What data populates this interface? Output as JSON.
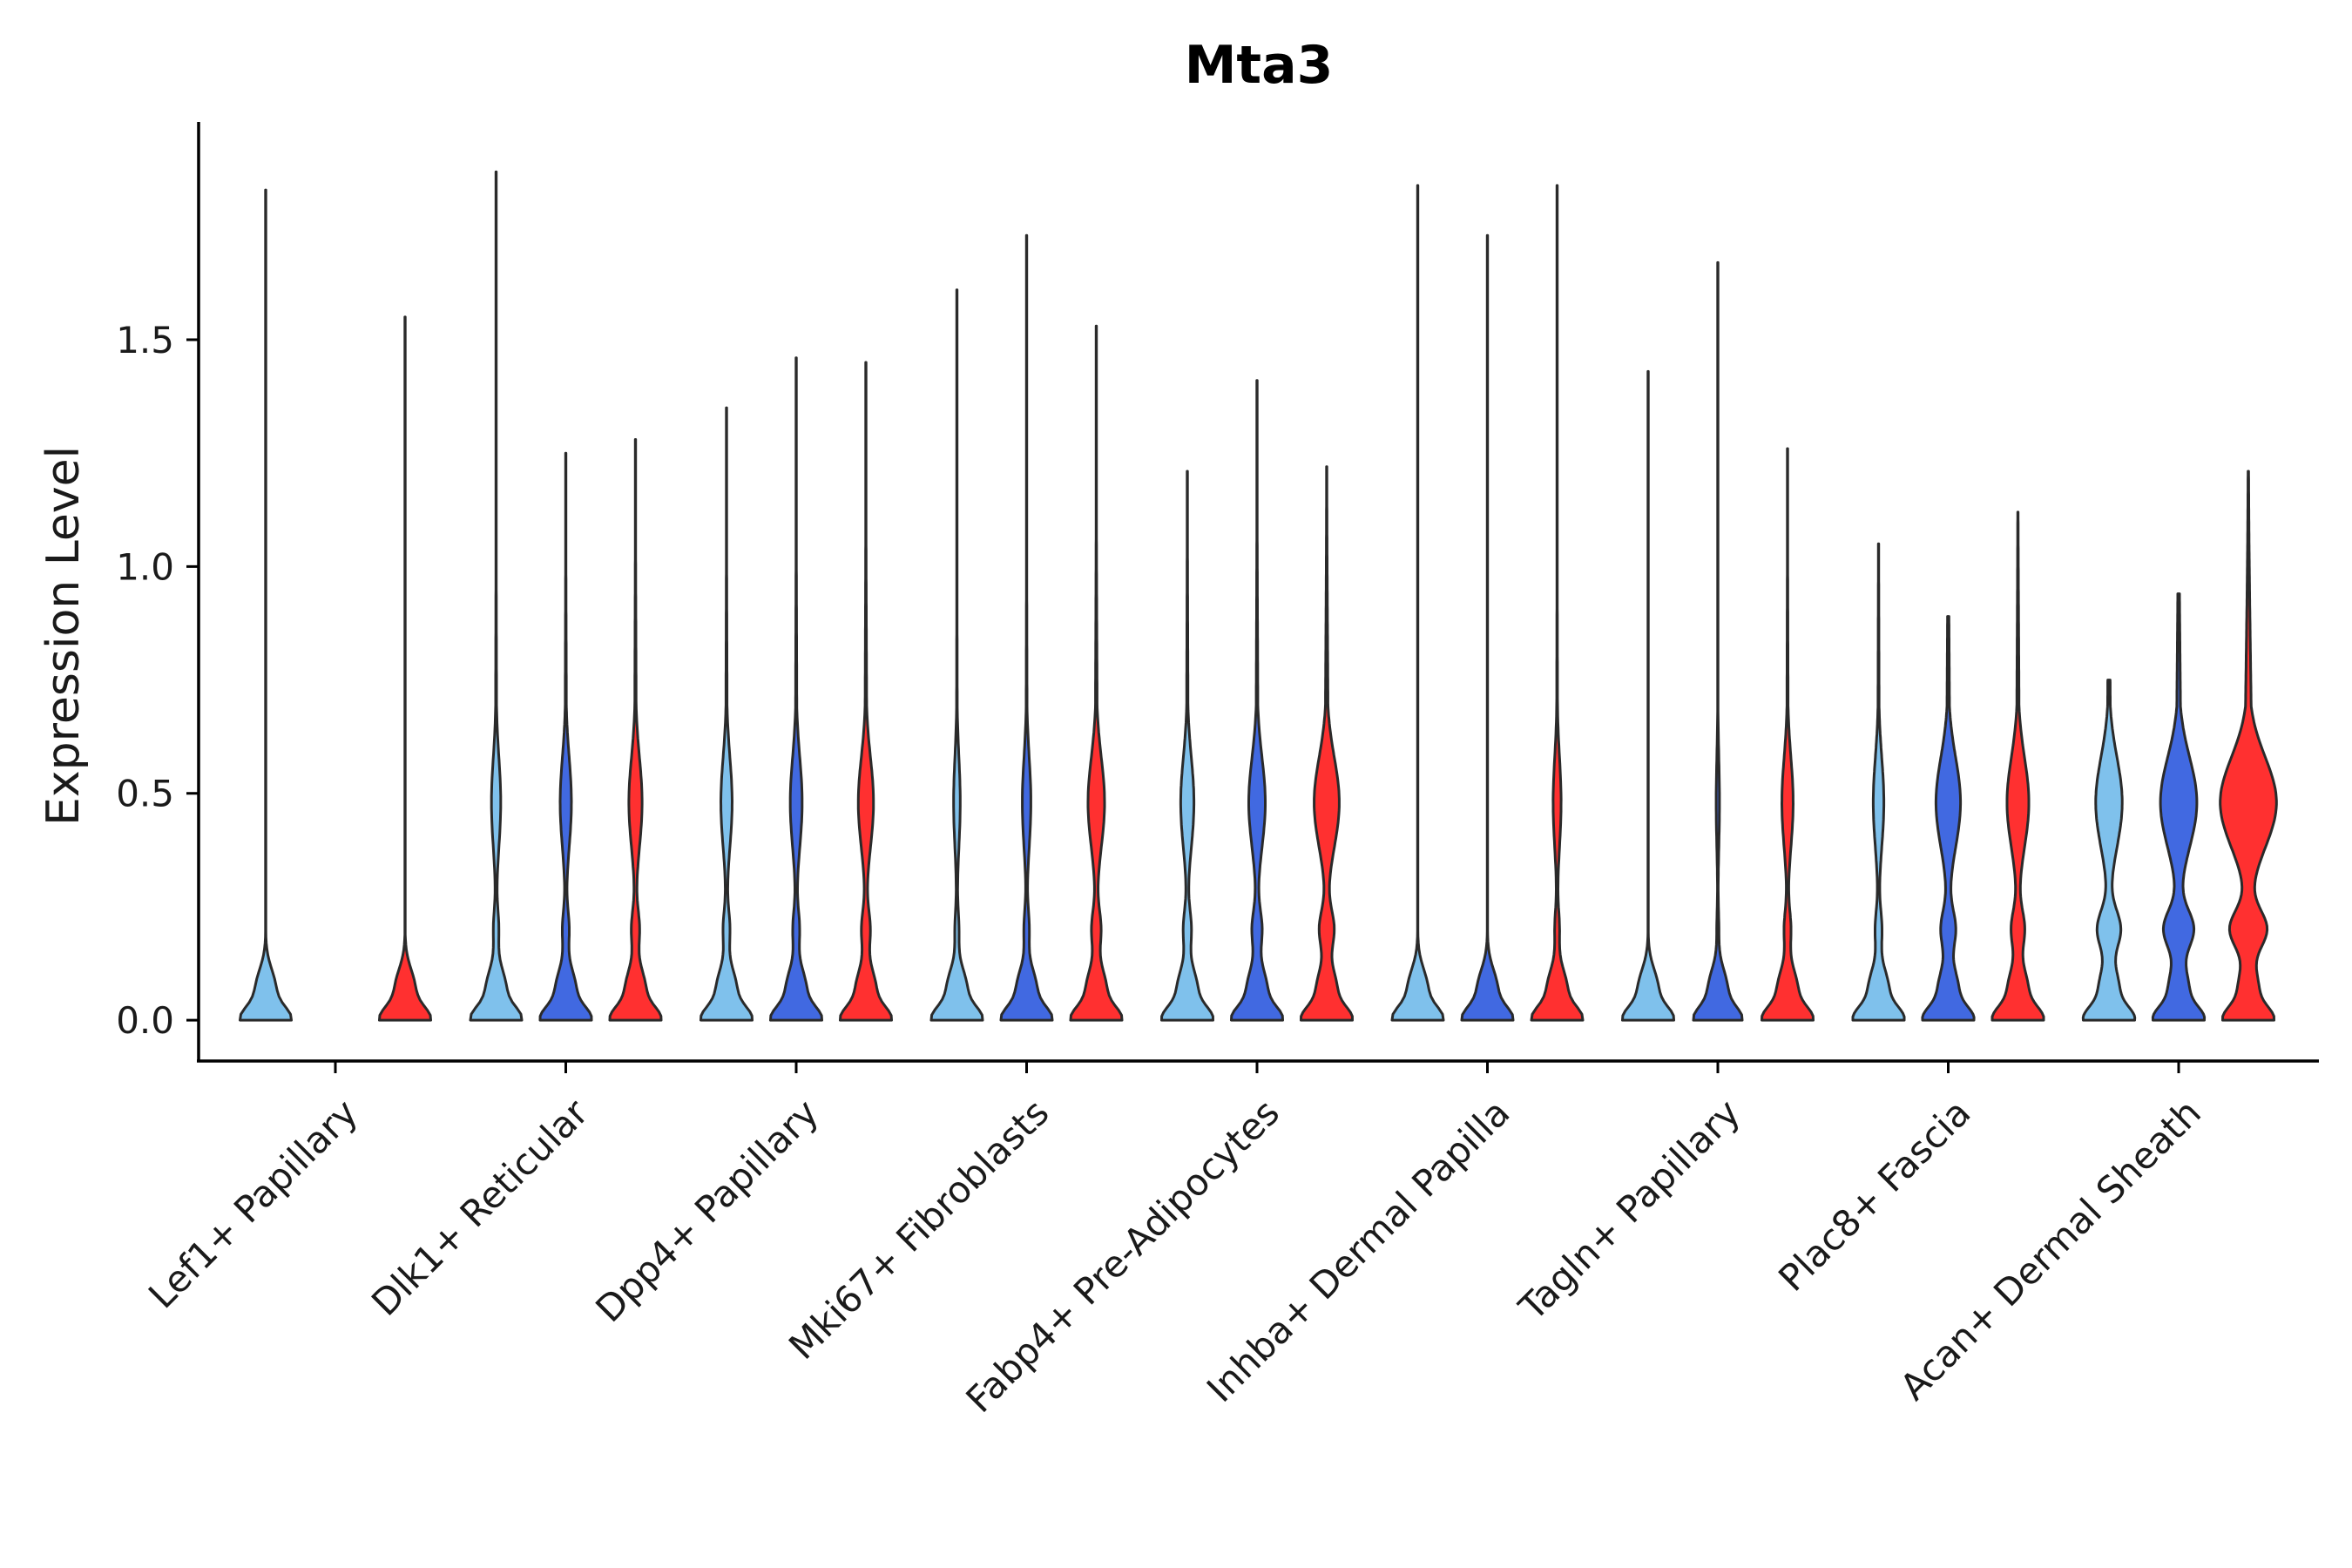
{
  "chart_data": {
    "type": "violin",
    "title": "Mta3",
    "xlabel": "",
    "ylabel": "Expression Level",
    "ylim": [
      -0.09,
      1.98
    ],
    "yticks": [
      0.0,
      0.5,
      1.0,
      1.5
    ],
    "ytick_labels": [
      "0.0",
      "0.5",
      "1.0",
      "1.5"
    ],
    "categories": [
      "Lef1+ Papillary",
      "Dlk1+ Reticular",
      "Dpp4+ Papillary",
      "Mki67+ Fibroblasts",
      "Fabp4+ Pre-Adipocytes",
      "Inhba+ Dermal Papilla",
      "Tagln+ Papillary",
      "Plac8+ Fascia",
      "Acan+ Dermal Sheath"
    ],
    "series_colors": [
      "#7fc1ec",
      "#4169e1",
      "#ff3030"
    ],
    "violins": [
      [
        {
          "max": 1.83,
          "w0": 1.0,
          "w_low": 0,
          "w_mode": 0
        },
        {
          "max": null,
          "w0": 0,
          "w_low": 0,
          "w_mode": 0
        },
        {
          "max": 1.55,
          "w0": 1.0,
          "w_low": 0,
          "w_mode": 0
        }
      ],
      [
        {
          "max": 1.87,
          "w0": 1.0,
          "w_low": 0.08,
          "w_mode": 0.14
        },
        {
          "max": 1.25,
          "w0": 1.0,
          "w_low": 0.1,
          "w_mode": 0.17
        },
        {
          "max": 1.28,
          "w0": 1.0,
          "w_low": 0.12,
          "w_mode": 0.2
        }
      ],
      [
        {
          "max": 1.35,
          "w0": 1.0,
          "w_low": 0.1,
          "w_mode": 0.17
        },
        {
          "max": 1.46,
          "w0": 1.0,
          "w_low": 0.1,
          "w_mode": 0.18
        },
        {
          "max": 1.45,
          "w0": 1.0,
          "w_low": 0.13,
          "w_mode": 0.23
        }
      ],
      [
        {
          "max": 1.61,
          "w0": 1.0,
          "w_low": 0.06,
          "w_mode": 0.1
        },
        {
          "max": 1.73,
          "w0": 1.0,
          "w_low": 0.08,
          "w_mode": 0.13
        },
        {
          "max": 1.53,
          "w0": 1.0,
          "w_low": 0.14,
          "w_mode": 0.25
        }
      ],
      [
        {
          "max": 1.21,
          "w0": 1.0,
          "w_low": 0.12,
          "w_mode": 0.2
        },
        {
          "max": 1.41,
          "w0": 1.0,
          "w_low": 0.15,
          "w_mode": 0.25
        },
        {
          "max": 1.22,
          "w0": 1.0,
          "w_low": 0.22,
          "w_mode": 0.38
        }
      ],
      [
        {
          "max": 1.84,
          "w0": 1.0,
          "w_low": 0,
          "w_mode": 0
        },
        {
          "max": 1.73,
          "w0": 1.0,
          "w_low": 0,
          "w_mode": 0
        },
        {
          "max": 1.84,
          "w0": 1.0,
          "w_low": 0.07,
          "w_mode": 0.12
        }
      ],
      [
        {
          "max": 1.43,
          "w0": 1.0,
          "w_low": 0,
          "w_mode": 0
        },
        {
          "max": 1.67,
          "w0": 0.95,
          "w_low": 0.03,
          "w_mode": 0.05
        },
        {
          "max": 1.26,
          "w0": 1.0,
          "w_low": 0.1,
          "w_mode": 0.17
        }
      ],
      [
        {
          "max": 1.05,
          "w0": 1.0,
          "w_low": 0.1,
          "w_mode": 0.16
        },
        {
          "max": 0.89,
          "w0": 1.0,
          "w_low": 0.22,
          "w_mode": 0.37
        },
        {
          "max": 1.12,
          "w0": 1.0,
          "w_low": 0.2,
          "w_mode": 0.33
        }
      ],
      [
        {
          "max": 0.75,
          "w0": 1.0,
          "w_low": 0.35,
          "w_mode": 0.4
        },
        {
          "max": 0.94,
          "w0": 1.0,
          "w_low": 0.45,
          "w_mode": 0.55
        },
        {
          "max": 1.21,
          "w0": 1.0,
          "w_low": 0.55,
          "w_mode": 0.85
        }
      ]
    ]
  }
}
